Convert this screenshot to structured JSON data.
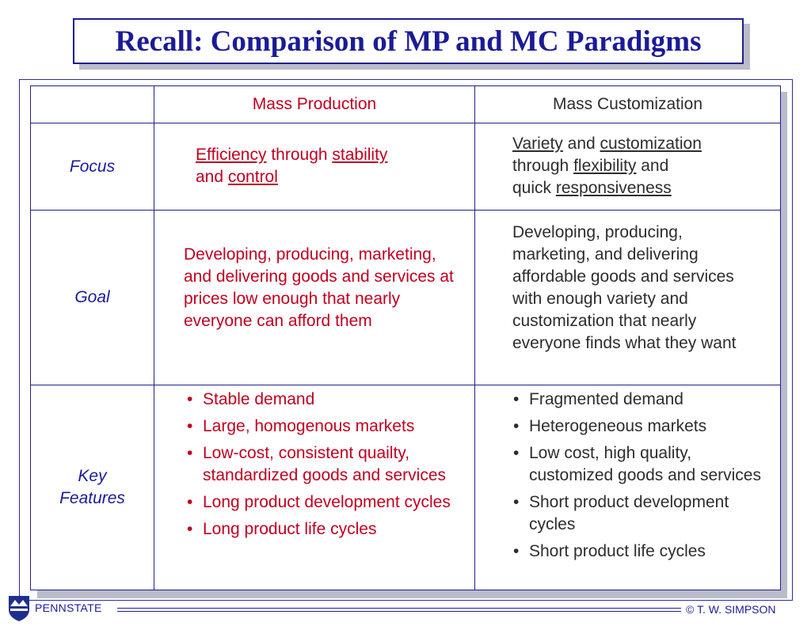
{
  "title": "Recall: Comparison of MP and MC Paradigms",
  "columns": {
    "mp": "Mass Production",
    "mc": "Mass Customization"
  },
  "rows": {
    "focus": {
      "label": "Focus",
      "mp": {
        "w1": "Efficiency",
        "w2": " through ",
        "w3": "stability",
        "w4": "and ",
        "w5": "control"
      },
      "mc": {
        "w1": "Variety",
        "w2": " and ",
        "w3": "customization",
        "w4": "through ",
        "w5": "flexibility",
        "w6": " and",
        "w7": "quick ",
        "w8": "responsiveness"
      }
    },
    "goal": {
      "label": "Goal",
      "mp": "Developing, producing, marketing, and delivering goods and services at prices low enough that nearly everyone can afford them",
      "mc": "Developing, producing, marketing, and delivering affordable goods and services with enough variety and customization that nearly everyone finds what they want"
    },
    "features": {
      "label_line1": "Key",
      "label_line2": "Features",
      "mp": [
        "Stable demand",
        "Large, homogenous markets",
        "Low-cost, consistent quailty, standardized goods and services",
        "Long product development cycles",
        "Long product life cycles"
      ],
      "mc": [
        "Fragmented demand",
        "Heterogeneous markets",
        "Low cost, high quality, customized goods and services",
        "Short product development cycles",
        "Short product life cycles"
      ]
    }
  },
  "footer": {
    "left": "PENNSTATE",
    "right": "© T. W. SIMPSON"
  },
  "colors": {
    "title_blue": "#1b1b98",
    "mp_red": "#c00020",
    "mc_text": "#2d2d2d",
    "border_blue": "#1f1f8f"
  }
}
